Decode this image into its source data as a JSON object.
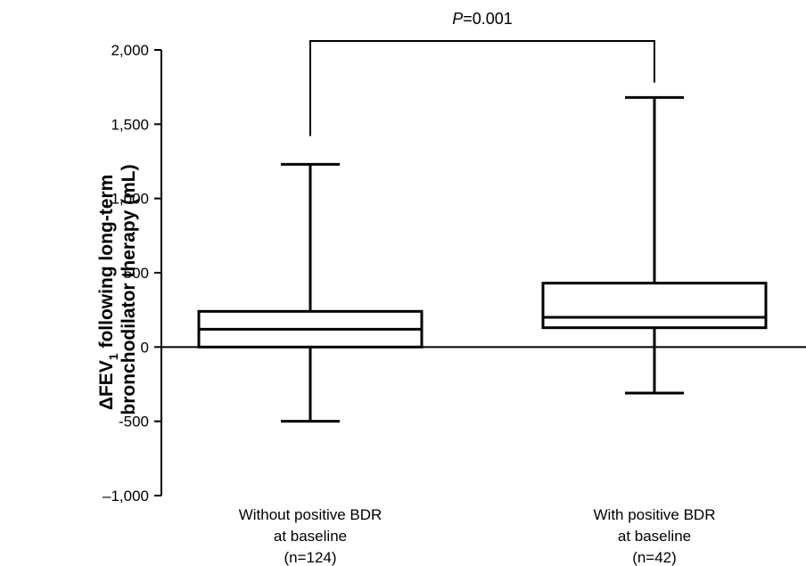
{
  "chart_data": {
    "type": "box",
    "ylabel": {
      "prefix": "ΔFEV",
      "subscript": "1",
      "line1_rest": " following long-term",
      "line2": "bronchodilator therapy (mL)"
    },
    "ylim": [
      -1000,
      2000
    ],
    "yticks": [
      {
        "value": 2000,
        "label": "2,000"
      },
      {
        "value": 1500,
        "label": "1,500"
      },
      {
        "value": 1000,
        "label": "1,000"
      },
      {
        "value": 500,
        "label": "500"
      },
      {
        "value": 0,
        "label": "0"
      },
      {
        "value": -500,
        "label": "-500"
      },
      {
        "value": -1000,
        "label": "–1,000"
      }
    ],
    "groups": [
      {
        "label_lines": [
          "Without positive BDR",
          "at baseline",
          "(n=124)"
        ],
        "min": -500,
        "q1": 0,
        "median": 120,
        "q3": 240,
        "max": 1230
      },
      {
        "label_lines": [
          "With positive BDR",
          "at baseline",
          "(n=42)"
        ],
        "min": -310,
        "q1": 130,
        "median": 200,
        "q3": 430,
        "max": 1680
      }
    ],
    "significance": {
      "italic": "P",
      "rest": "=0.001",
      "bracket_top": 2060,
      "left_leg_bottom": 1420,
      "right_leg_bottom": 1780
    },
    "grid": false,
    "reference_line_at": 0
  }
}
